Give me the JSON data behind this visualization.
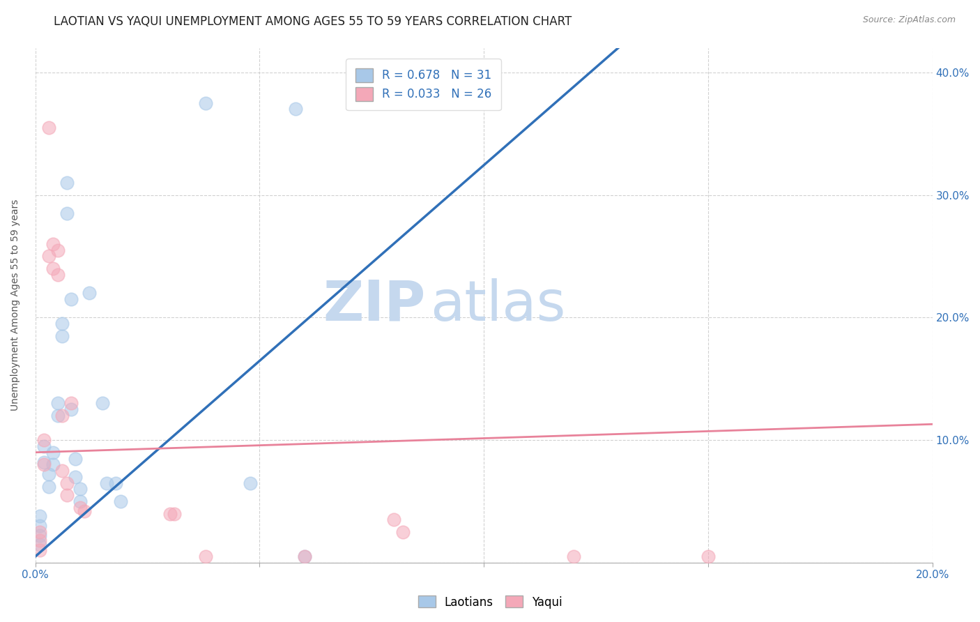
{
  "title": "LAOTIAN VS YAQUI UNEMPLOYMENT AMONG AGES 55 TO 59 YEARS CORRELATION CHART",
  "source": "Source: ZipAtlas.com",
  "ylabel": "Unemployment Among Ages 55 to 59 years",
  "xlim": [
    0.0,
    0.2
  ],
  "ylim": [
    0.0,
    0.42
  ],
  "xticks": [
    0.0,
    0.05,
    0.1,
    0.15,
    0.2
  ],
  "xtick_labels": [
    "0.0%",
    "",
    "",
    "",
    "20.0%"
  ],
  "yticks": [
    0.0,
    0.1,
    0.2,
    0.3,
    0.4
  ],
  "ytick_labels": [
    "",
    "10.0%",
    "20.0%",
    "30.0%",
    "40.0%"
  ],
  "watermark_zip": "ZIP",
  "watermark_atlas": "atlas",
  "legend_blue_label": "Laotians",
  "legend_pink_label": "Yaqui",
  "legend_R_blue": "R = 0.678",
  "legend_N_blue": "N = 31",
  "legend_R_pink": "R = 0.033",
  "legend_N_pink": "N = 26",
  "blue_color": "#a8c8e8",
  "pink_color": "#f4a8b8",
  "blue_line_color": "#3070b8",
  "pink_line_color": "#e8829a",
  "scatter_blue": [
    [
      0.001,
      0.038
    ],
    [
      0.001,
      0.03
    ],
    [
      0.001,
      0.022
    ],
    [
      0.001,
      0.015
    ],
    [
      0.002,
      0.095
    ],
    [
      0.002,
      0.082
    ],
    [
      0.003,
      0.072
    ],
    [
      0.003,
      0.062
    ],
    [
      0.004,
      0.09
    ],
    [
      0.004,
      0.08
    ],
    [
      0.005,
      0.13
    ],
    [
      0.005,
      0.12
    ],
    [
      0.006,
      0.195
    ],
    [
      0.006,
      0.185
    ],
    [
      0.007,
      0.31
    ],
    [
      0.007,
      0.285
    ],
    [
      0.008,
      0.215
    ],
    [
      0.008,
      0.125
    ],
    [
      0.009,
      0.085
    ],
    [
      0.009,
      0.07
    ],
    [
      0.01,
      0.06
    ],
    [
      0.01,
      0.05
    ],
    [
      0.012,
      0.22
    ],
    [
      0.015,
      0.13
    ],
    [
      0.016,
      0.065
    ],
    [
      0.018,
      0.065
    ],
    [
      0.019,
      0.05
    ],
    [
      0.038,
      0.375
    ],
    [
      0.048,
      0.065
    ],
    [
      0.058,
      0.37
    ],
    [
      0.06,
      0.005
    ]
  ],
  "scatter_pink": [
    [
      0.001,
      0.025
    ],
    [
      0.001,
      0.018
    ],
    [
      0.001,
      0.01
    ],
    [
      0.002,
      0.1
    ],
    [
      0.002,
      0.08
    ],
    [
      0.003,
      0.355
    ],
    [
      0.003,
      0.25
    ],
    [
      0.004,
      0.26
    ],
    [
      0.004,
      0.24
    ],
    [
      0.005,
      0.255
    ],
    [
      0.005,
      0.235
    ],
    [
      0.006,
      0.12
    ],
    [
      0.006,
      0.075
    ],
    [
      0.007,
      0.065
    ],
    [
      0.007,
      0.055
    ],
    [
      0.008,
      0.13
    ],
    [
      0.01,
      0.045
    ],
    [
      0.011,
      0.042
    ],
    [
      0.03,
      0.04
    ],
    [
      0.031,
      0.04
    ],
    [
      0.038,
      0.005
    ],
    [
      0.06,
      0.005
    ],
    [
      0.08,
      0.035
    ],
    [
      0.082,
      0.025
    ],
    [
      0.12,
      0.005
    ],
    [
      0.15,
      0.005
    ]
  ],
  "blue_line": [
    [
      0.0,
      0.005
    ],
    [
      0.13,
      0.42
    ]
  ],
  "pink_line": [
    [
      0.0,
      0.09
    ],
    [
      0.2,
      0.113
    ]
  ],
  "grid_color": "#cccccc",
  "bg_color": "#ffffff",
  "title_fontsize": 12,
  "axis_label_fontsize": 10,
  "tick_fontsize": 11
}
